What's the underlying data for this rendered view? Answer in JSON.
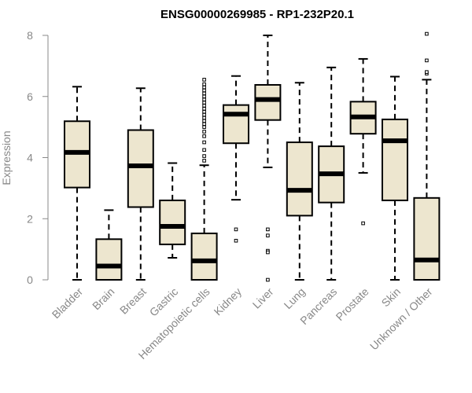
{
  "chart_data": {
    "type": "boxplot",
    "title": "ENSG00000269985 - RP1-232P20.1",
    "ylabel": "Expression",
    "xlabel": "",
    "ylim": [
      0,
      8
    ],
    "yticks": [
      0,
      2,
      4,
      6,
      8
    ],
    "categories": [
      "Bladder",
      "Brain",
      "Breast",
      "Gastric",
      "Hematopoietic cells",
      "Kidney",
      "Liver",
      "Lung",
      "Pancreas",
      "Prostate",
      "Skin",
      "Unknown / Other"
    ],
    "box_fill": "#ede6cf",
    "boxes": [
      {
        "name": "Bladder",
        "whisker_low": 0.0,
        "q1": 3.02,
        "median": 4.17,
        "q3": 5.19,
        "whisker_high": 6.32,
        "outliers": []
      },
      {
        "name": "Brain",
        "whisker_low": 0.0,
        "q1": 0.0,
        "median": 0.45,
        "q3": 1.33,
        "whisker_high": 2.28,
        "outliers": []
      },
      {
        "name": "Breast",
        "whisker_low": 0.0,
        "q1": 2.38,
        "median": 3.73,
        "q3": 4.9,
        "whisker_high": 6.27,
        "outliers": []
      },
      {
        "name": "Gastric",
        "whisker_low": 0.72,
        "q1": 1.16,
        "median": 1.75,
        "q3": 2.6,
        "whisker_high": 3.82,
        "outliers": []
      },
      {
        "name": "Hematopoietic cells",
        "whisker_low": 0.0,
        "q1": 0.0,
        "median": 0.62,
        "q3": 1.52,
        "whisker_high": 3.75,
        "outliers": [
          3.9,
          4.05,
          4.25,
          4.5,
          4.7,
          4.85,
          5.0,
          5.1,
          5.2,
          5.3,
          5.4,
          5.5,
          5.6,
          5.7,
          5.8,
          5.9,
          6.0,
          6.1,
          6.2,
          6.3,
          6.4,
          6.55
        ]
      },
      {
        "name": "Kidney",
        "whisker_low": 2.62,
        "q1": 4.47,
        "median": 5.42,
        "q3": 5.72,
        "whisker_high": 6.67,
        "outliers": [
          1.65,
          1.28
        ]
      },
      {
        "name": "Liver",
        "whisker_low": 3.68,
        "q1": 5.23,
        "median": 5.9,
        "q3": 6.38,
        "whisker_high": 8.0,
        "outliers": [
          1.65,
          1.45,
          0.95,
          0.9,
          0.0
        ]
      },
      {
        "name": "Lung",
        "whisker_low": 0.0,
        "q1": 2.1,
        "median": 2.93,
        "q3": 4.5,
        "whisker_high": 6.45,
        "outliers": []
      },
      {
        "name": "Pancreas",
        "whisker_low": 0.0,
        "q1": 2.53,
        "median": 3.47,
        "q3": 4.37,
        "whisker_high": 6.95,
        "outliers": []
      },
      {
        "name": "Prostate",
        "whisker_low": 3.5,
        "q1": 4.78,
        "median": 5.33,
        "q3": 5.83,
        "whisker_high": 7.23,
        "outliers": [
          1.85
        ]
      },
      {
        "name": "Skin",
        "whisker_low": 0.0,
        "q1": 2.6,
        "median": 4.55,
        "q3": 5.25,
        "whisker_high": 6.65,
        "outliers": []
      },
      {
        "name": "Unknown / Other",
        "whisker_low": 0.0,
        "q1": 0.0,
        "median": 0.65,
        "q3": 2.68,
        "whisker_high": 6.55,
        "outliers": [
          6.75,
          6.8,
          7.18,
          8.05
        ]
      }
    ]
  }
}
